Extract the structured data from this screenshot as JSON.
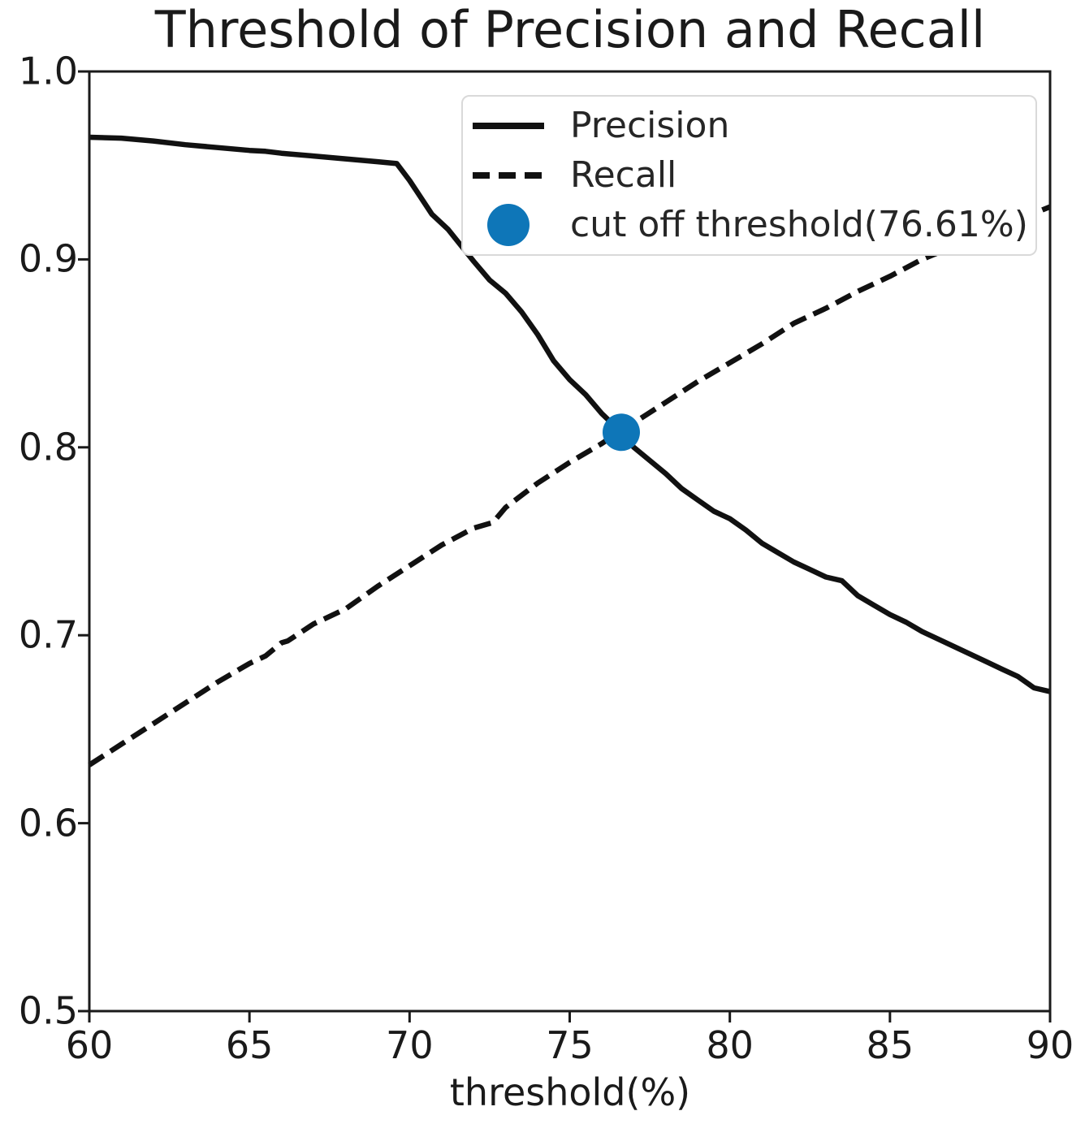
{
  "title": "Threshold of Precision and Recall",
  "chart_data": {
    "type": "line",
    "title": "Threshold of Precision and Recall",
    "xlabel": "threshold(%)",
    "ylabel": "",
    "xlim": [
      60,
      90
    ],
    "ylim": [
      0.5,
      1.0
    ],
    "x_ticks": [
      60,
      65,
      70,
      75,
      80,
      85,
      90
    ],
    "y_ticks": [
      0.5,
      0.6,
      0.7,
      0.8,
      0.9,
      1.0
    ],
    "grid": false,
    "legend_position": "upper right",
    "series": [
      {
        "name": "Precision",
        "style": "solid",
        "color": "#111111",
        "points": [
          [
            60,
            0.965
          ],
          [
            61,
            0.9645
          ],
          [
            62,
            0.963
          ],
          [
            63,
            0.961
          ],
          [
            64,
            0.9595
          ],
          [
            65,
            0.958
          ],
          [
            65.5,
            0.9575
          ],
          [
            66,
            0.9565
          ],
          [
            67,
            0.955
          ],
          [
            68,
            0.9535
          ],
          [
            69,
            0.952
          ],
          [
            69.6,
            0.951
          ],
          [
            70,
            0.942
          ],
          [
            70.7,
            0.924
          ],
          [
            71.2,
            0.916
          ],
          [
            72,
            0.899
          ],
          [
            72.5,
            0.889
          ],
          [
            73,
            0.882
          ],
          [
            73.5,
            0.872
          ],
          [
            74,
            0.86
          ],
          [
            74.5,
            0.846
          ],
          [
            75,
            0.836
          ],
          [
            75.5,
            0.828
          ],
          [
            76,
            0.818
          ],
          [
            76.61,
            0.808
          ],
          [
            77,
            0.8
          ],
          [
            77.5,
            0.793
          ],
          [
            78,
            0.786
          ],
          [
            78.5,
            0.778
          ],
          [
            79,
            0.772
          ],
          [
            79.5,
            0.766
          ],
          [
            80,
            0.762
          ],
          [
            80.5,
            0.756
          ],
          [
            81,
            0.749
          ],
          [
            81.5,
            0.744
          ],
          [
            82,
            0.739
          ],
          [
            82.5,
            0.735
          ],
          [
            83,
            0.731
          ],
          [
            83.5,
            0.729
          ],
          [
            84,
            0.721
          ],
          [
            84.5,
            0.716
          ],
          [
            85,
            0.711
          ],
          [
            85.5,
            0.707
          ],
          [
            86,
            0.702
          ],
          [
            86.5,
            0.698
          ],
          [
            87,
            0.694
          ],
          [
            87.5,
            0.69
          ],
          [
            88,
            0.686
          ],
          [
            88.5,
            0.682
          ],
          [
            89,
            0.678
          ],
          [
            89.5,
            0.672
          ],
          [
            90,
            0.67
          ]
        ]
      },
      {
        "name": "Recall",
        "style": "dashed",
        "color": "#111111",
        "points": [
          [
            60,
            0.631
          ],
          [
            61,
            0.642
          ],
          [
            62,
            0.653
          ],
          [
            63,
            0.664
          ],
          [
            64,
            0.675
          ],
          [
            65,
            0.685
          ],
          [
            65.5,
            0.689
          ],
          [
            66,
            0.696
          ],
          [
            66.2,
            0.697
          ],
          [
            67,
            0.706
          ],
          [
            68,
            0.714
          ],
          [
            69,
            0.726
          ],
          [
            70,
            0.737
          ],
          [
            71,
            0.748
          ],
          [
            72,
            0.757
          ],
          [
            72.6,
            0.76
          ],
          [
            73,
            0.768
          ],
          [
            74,
            0.781
          ],
          [
            75,
            0.792
          ],
          [
            76,
            0.802
          ],
          [
            76.61,
            0.809
          ],
          [
            77,
            0.813
          ],
          [
            78,
            0.824
          ],
          [
            79,
            0.835
          ],
          [
            80,
            0.845
          ],
          [
            81,
            0.855
          ],
          [
            82,
            0.866
          ],
          [
            83,
            0.874
          ],
          [
            84,
            0.883
          ],
          [
            85,
            0.891
          ],
          [
            86,
            0.9
          ],
          [
            87,
            0.907
          ],
          [
            88,
            0.914
          ],
          [
            89,
            0.921
          ],
          [
            90,
            0.928
          ]
        ]
      }
    ],
    "cut_off": {
      "label": "cut off threshold(76.61%)",
      "x": 76.61,
      "y": 0.808
    }
  },
  "legend": {
    "items": [
      {
        "label": "Precision",
        "marker": "solid-line"
      },
      {
        "label": "Recall",
        "marker": "dashed-line"
      },
      {
        "label": "cut off threshold(76.61%)",
        "marker": "dot"
      }
    ]
  },
  "colors": {
    "curve": "#111111",
    "accent_blue": "#0e76b8",
    "legend_border": "#d9d9d9",
    "text": "#1a1a1a"
  }
}
